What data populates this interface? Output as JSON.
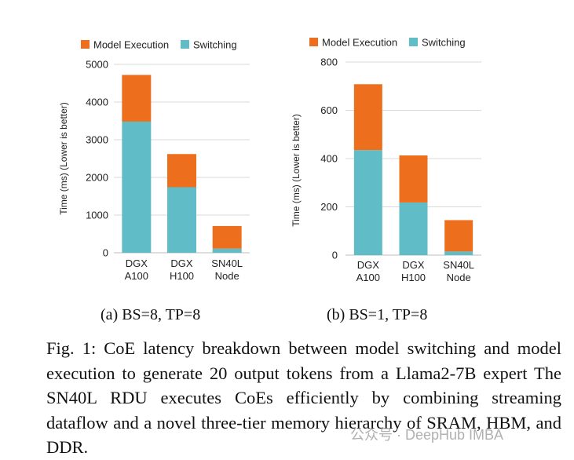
{
  "colors": {
    "model_execution": "#ED6F1E",
    "switching": "#60BDC7",
    "grid": "#d9d9d9"
  },
  "chart_data": [
    {
      "type": "bar",
      "stacked": true,
      "categories": [
        [
          "DGX",
          "A100"
        ],
        [
          "DGX",
          "H100"
        ],
        [
          "SN40L",
          "Node"
        ]
      ],
      "series": [
        {
          "name": "Switching",
          "values": [
            3480,
            1740,
            110
          ]
        },
        {
          "name": "Model Execution",
          "values": [
            1240,
            880,
            600
          ]
        }
      ],
      "legend": [
        "Model Execution",
        "Switching"
      ],
      "legend_position": "top",
      "ylabel": "Time (ms) (Lower is better)",
      "xlabel": "",
      "ylim": [
        0,
        5000
      ],
      "yticks": [
        0,
        1000,
        2000,
        3000,
        4000,
        5000
      ],
      "grid": true,
      "subcaption": "(a) BS=8, TP=8"
    },
    {
      "type": "bar",
      "stacked": true,
      "categories": [
        [
          "DGX",
          "A100"
        ],
        [
          "DGX",
          "H100"
        ],
        [
          "SN40L",
          "Node"
        ]
      ],
      "series": [
        {
          "name": "Switching",
          "values": [
            435,
            218,
            15
          ]
        },
        {
          "name": "Model Execution",
          "values": [
            273,
            195,
            130
          ]
        }
      ],
      "legend": [
        "Model Execution",
        "Switching"
      ],
      "legend_position": "top",
      "ylabel": "Time (ms) (Lower is better)",
      "xlabel": "",
      "ylim": [
        0,
        800
      ],
      "yticks": [
        0,
        200,
        400,
        600,
        800
      ],
      "grid": true,
      "subcaption": "(b) BS=1, TP=8"
    }
  ],
  "caption": "Fig. 1: CoE latency breakdown between model switching and model execution to generate 20 output tokens from a Llama2-7B expert The SN40L RDU executes CoEs efficiently by combining streaming dataflow and a novel three-tier memory hierarchy of SRAM, HBM, and DDR.",
  "watermark": "公众号 · DeepHub IMBA"
}
